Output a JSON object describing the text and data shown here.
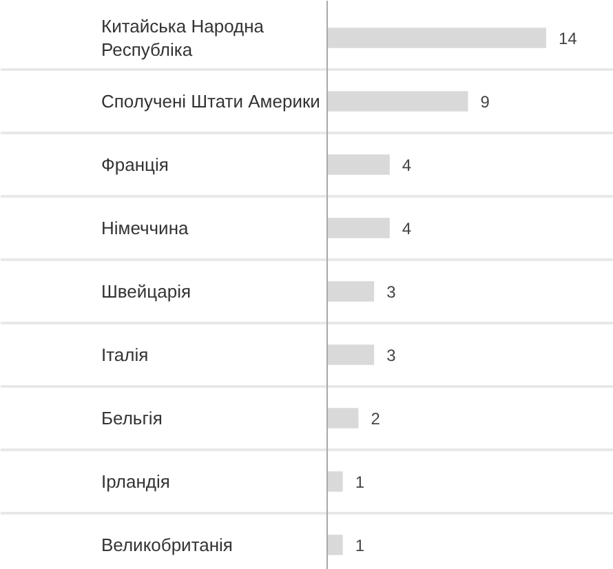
{
  "chart_data": {
    "type": "bar",
    "orientation": "horizontal",
    "categories": [
      "Китайська Народна Республіка",
      "Сполучені Штати Америки",
      "Франція",
      "Німеччина",
      "Швейцарія",
      "Італія",
      "Бельгія",
      "Ірландія",
      "Великобританія"
    ],
    "values": [
      14,
      9,
      4,
      4,
      3,
      3,
      2,
      1,
      1
    ],
    "color": "#d9d9d9",
    "data_labels": true,
    "grid": "y",
    "tick_labels": "y"
  }
}
